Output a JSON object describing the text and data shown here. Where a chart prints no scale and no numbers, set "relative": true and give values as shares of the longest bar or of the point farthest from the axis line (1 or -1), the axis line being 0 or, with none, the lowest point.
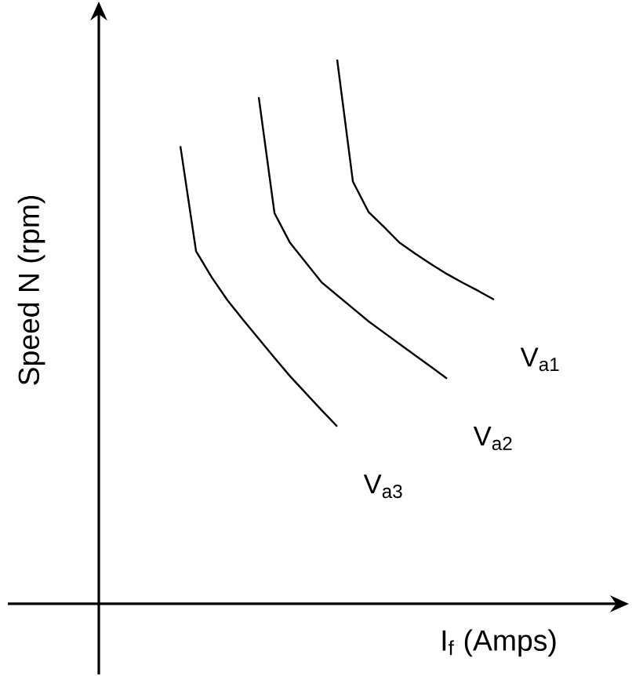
{
  "chart_data": {
    "type": "line",
    "relative": true,
    "xlabel": "I$_{f}$ (Amps)",
    "ylabel": "Speed N (rpm)",
    "categories": [
      null,
      null,
      null,
      null,
      null,
      null,
      null,
      null,
      null,
      null,
      null,
      null,
      null,
      null,
      null,
      null,
      null,
      null,
      null,
      null,
      null
    ],
    "series": [
      {
        "name": "V$_{a1}$",
        "color": "#000000",
        "values": [
          null,
          null,
          null,
          null,
          null,
          null,
          null,
          null,
          null,
          null,
          1,
          0.776,
          0.72,
          0.692,
          0.663,
          0.643,
          0.624,
          0.606,
          0.59,
          0.575,
          0.559
        ]
      },
      {
        "name": "V$_{a2}$",
        "color": "#000000",
        "values": [
          null,
          null,
          null,
          null,
          null,
          0.931,
          0.718,
          0.663,
          0.627,
          0.591,
          0.567,
          0.543,
          0.519,
          0.498,
          0.477,
          0.456,
          0.435,
          0.414,
          null,
          null,
          null
        ]
      },
      {
        "name": "V$_{a3}$",
        "color": "#000000",
        "values": [
          0.841,
          0.648,
          0.6,
          0.558,
          0.522,
          0.487,
          0.452,
          0.418,
          0.387,
          0.356,
          0.326,
          null,
          null,
          null,
          null,
          null,
          null,
          null,
          null,
          null,
          null
        ]
      }
    ]
  }
}
